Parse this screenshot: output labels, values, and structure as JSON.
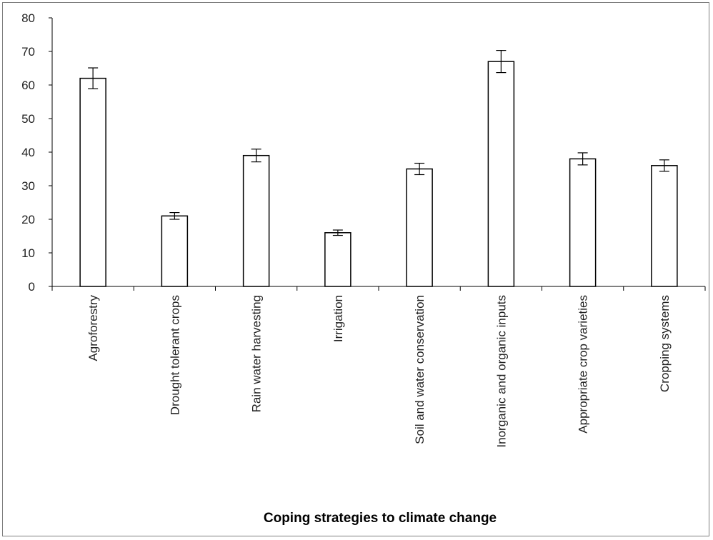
{
  "chart_data": {
    "type": "bar",
    "title": "",
    "xlabel": "Coping strategies to climate change",
    "ylabel": "",
    "ylim": [
      0,
      80
    ],
    "yticks": [
      0,
      10,
      20,
      30,
      40,
      50,
      60,
      70,
      80
    ],
    "grid": false,
    "legend": "none",
    "categories": [
      "Agroforestry",
      "Drought tolerant crops",
      "Rain water harvesting",
      "Irrigation",
      "Soil and water conservation",
      "Inorganic and organic inputs",
      "Appropriate crop varieties",
      "Cropping systems"
    ],
    "values": [
      62,
      21,
      39,
      16,
      35,
      67,
      38,
      36
    ],
    "error": [
      3.1,
      1.0,
      1.9,
      0.8,
      1.7,
      3.3,
      1.8,
      1.7
    ],
    "colors": {
      "bar_fill": "#ffffff",
      "bar_stroke": "#000000",
      "axis": "#000000",
      "frame": "#7f7f7f"
    }
  }
}
